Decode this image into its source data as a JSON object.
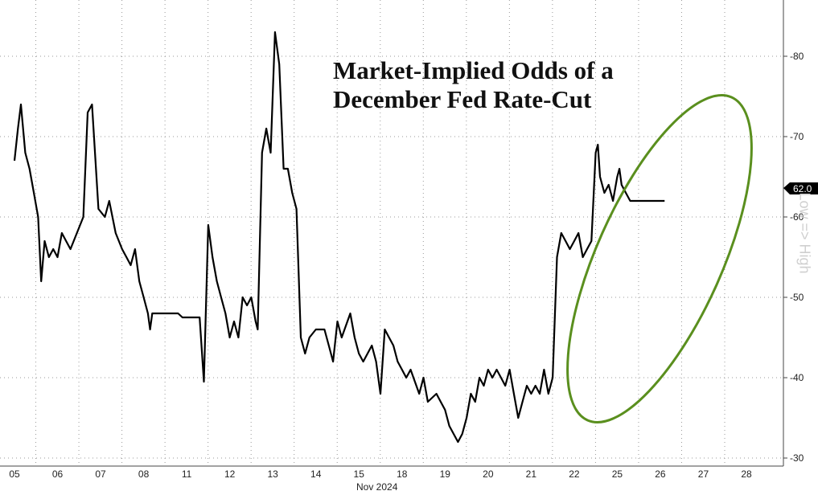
{
  "chart_data": {
    "type": "line",
    "title": "Market-Implied Odds of a\nDecember Fed Rate-Cut",
    "xlabel": "Nov 2024",
    "ylabel": "",
    "side_label": "Low => High",
    "ylim": [
      29,
      87
    ],
    "y_ticks": [
      30,
      40,
      50,
      60,
      70,
      80
    ],
    "x_ticks": [
      "05",
      "06",
      "07",
      "08",
      "11",
      "12",
      "13",
      "14",
      "15",
      "18",
      "19",
      "20",
      "21",
      "22",
      "25",
      "26",
      "27",
      "28"
    ],
    "last_value_label": "62.0",
    "grid": true,
    "colors": {
      "line": "#000000",
      "ellipse": "#5a8f1e",
      "badge": "#000000",
      "grid": "#9a9a9a"
    },
    "series": [
      {
        "values": [
          [
            0,
            67
          ],
          [
            0.08,
            71
          ],
          [
            0.15,
            74
          ],
          [
            0.25,
            68
          ],
          [
            0.35,
            66
          ],
          [
            0.45,
            63
          ],
          [
            0.55,
            60
          ],
          [
            0.62,
            52
          ],
          [
            0.7,
            57
          ],
          [
            0.8,
            55
          ],
          [
            0.9,
            56
          ],
          [
            1.0,
            55
          ],
          [
            1.1,
            58
          ],
          [
            1.2,
            57
          ],
          [
            1.3,
            56
          ],
          [
            1.6,
            60
          ],
          [
            1.7,
            73
          ],
          [
            1.8,
            74
          ],
          [
            1.95,
            61
          ],
          [
            2.1,
            60
          ],
          [
            2.2,
            62
          ],
          [
            2.35,
            58
          ],
          [
            2.5,
            56
          ],
          [
            2.6,
            55
          ],
          [
            2.7,
            54
          ],
          [
            2.8,
            56
          ],
          [
            2.9,
            52
          ],
          [
            3.0,
            50
          ],
          [
            3.1,
            48
          ],
          [
            3.15,
            46
          ],
          [
            3.2,
            48
          ],
          [
            3.3,
            48
          ],
          [
            3.5,
            48
          ],
          [
            3.8,
            48
          ],
          [
            3.9,
            47.5
          ],
          [
            4.3,
            47.5
          ],
          [
            4.4,
            39.5
          ],
          [
            4.5,
            59
          ],
          [
            4.6,
            55
          ],
          [
            4.7,
            52
          ],
          [
            4.8,
            50
          ],
          [
            4.9,
            48
          ],
          [
            5.0,
            45
          ],
          [
            5.1,
            47
          ],
          [
            5.2,
            45
          ],
          [
            5.3,
            50
          ],
          [
            5.4,
            49
          ],
          [
            5.5,
            50
          ],
          [
            5.6,
            47
          ],
          [
            5.65,
            46
          ],
          [
            5.75,
            68
          ],
          [
            5.85,
            71
          ],
          [
            5.95,
            68
          ],
          [
            6.05,
            83
          ],
          [
            6.15,
            79
          ],
          [
            6.25,
            66
          ],
          [
            6.35,
            66
          ],
          [
            6.45,
            63
          ],
          [
            6.55,
            61
          ],
          [
            6.65,
            45
          ],
          [
            6.75,
            43
          ],
          [
            6.85,
            45
          ],
          [
            7.0,
            46
          ],
          [
            7.2,
            46
          ],
          [
            7.3,
            44
          ],
          [
            7.4,
            42
          ],
          [
            7.5,
            47
          ],
          [
            7.6,
            45
          ],
          [
            7.8,
            48
          ],
          [
            7.9,
            45
          ],
          [
            8.0,
            43
          ],
          [
            8.1,
            42
          ],
          [
            8.3,
            44
          ],
          [
            8.4,
            42
          ],
          [
            8.5,
            38
          ],
          [
            8.6,
            46
          ],
          [
            8.7,
            45
          ],
          [
            8.8,
            44
          ],
          [
            8.9,
            42
          ],
          [
            9.0,
            41
          ],
          [
            9.1,
            40
          ],
          [
            9.2,
            41
          ],
          [
            9.4,
            38
          ],
          [
            9.5,
            40
          ],
          [
            9.6,
            37
          ],
          [
            9.8,
            38
          ],
          [
            9.9,
            37
          ],
          [
            10.0,
            36
          ],
          [
            10.1,
            34
          ],
          [
            10.2,
            33
          ],
          [
            10.3,
            32
          ],
          [
            10.4,
            33
          ],
          [
            10.5,
            35
          ],
          [
            10.6,
            38
          ],
          [
            10.7,
            37
          ],
          [
            10.8,
            40
          ],
          [
            10.9,
            39
          ],
          [
            11.0,
            41
          ],
          [
            11.1,
            40
          ],
          [
            11.2,
            41
          ],
          [
            11.3,
            40
          ],
          [
            11.4,
            39
          ],
          [
            11.5,
            41
          ],
          [
            11.6,
            38
          ],
          [
            11.7,
            35
          ],
          [
            11.8,
            37
          ],
          [
            11.9,
            39
          ],
          [
            12.0,
            38
          ],
          [
            12.1,
            39
          ],
          [
            12.2,
            38
          ],
          [
            12.3,
            41
          ],
          [
            12.4,
            38
          ],
          [
            12.5,
            40
          ],
          [
            12.6,
            55
          ],
          [
            12.7,
            58
          ],
          [
            12.8,
            57
          ],
          [
            12.9,
            56
          ],
          [
            13.0,
            57
          ],
          [
            13.1,
            58
          ],
          [
            13.2,
            55
          ],
          [
            13.3,
            56
          ],
          [
            13.4,
            57
          ],
          [
            13.5,
            68
          ],
          [
            13.55,
            69
          ],
          [
            13.6,
            65
          ],
          [
            13.7,
            63
          ],
          [
            13.8,
            64
          ],
          [
            13.9,
            62
          ],
          [
            14.0,
            65
          ],
          [
            14.05,
            66
          ],
          [
            14.1,
            64
          ],
          [
            14.2,
            63
          ],
          [
            14.3,
            62
          ],
          [
            14.4,
            62
          ],
          [
            14.6,
            62
          ],
          [
            15.0,
            62
          ],
          [
            15.1,
            62
          ]
        ]
      }
    ]
  }
}
